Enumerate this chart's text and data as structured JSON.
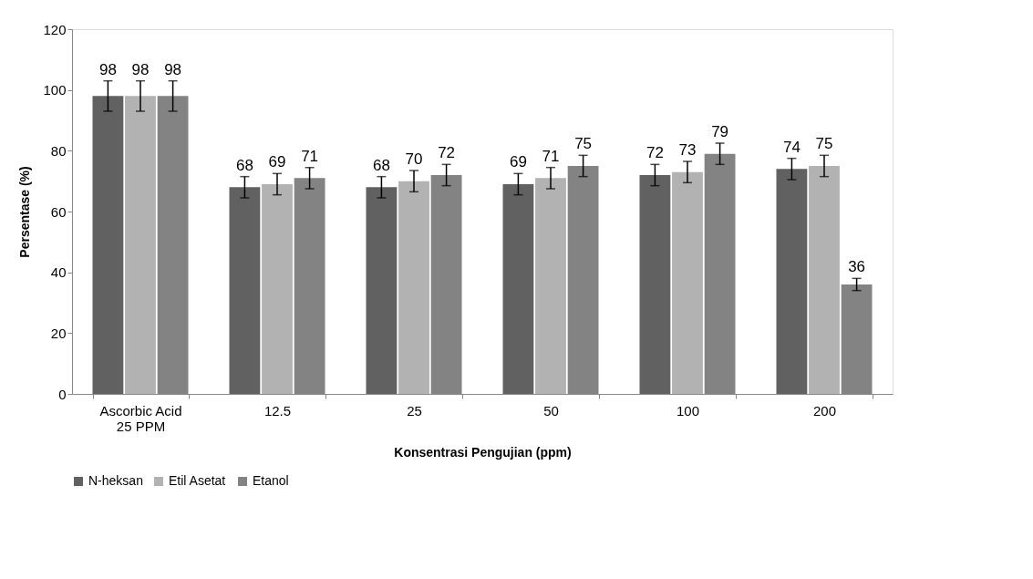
{
  "chart_data": {
    "type": "bar",
    "xlabel": "Konsentrasi Pengujian (ppm)",
    "ylabel": "Persentase (%)",
    "categories": [
      "Ascorbic Acid\n25 PPM",
      "12.5",
      "25",
      "50",
      "100",
      "200"
    ],
    "series": [
      {
        "name": "N-heksan",
        "color": "#616161",
        "values": [
          98,
          68,
          68,
          69,
          72,
          74
        ],
        "errors": [
          5,
          3.5,
          3.5,
          3.5,
          3.5,
          3.5
        ]
      },
      {
        "name": "Etil Asetat",
        "color": "#b2b2b2",
        "values": [
          98,
          69,
          70,
          71,
          73,
          75
        ],
        "errors": [
          5,
          3.5,
          3.5,
          3.5,
          3.5,
          3.5
        ]
      },
      {
        "name": "Etanol",
        "color": "#838383",
        "values": [
          98,
          71,
          72,
          75,
          79,
          36
        ],
        "errors": [
          5,
          3.5,
          3.5,
          3.5,
          3.5,
          2
        ]
      }
    ],
    "ylim": [
      0,
      120
    ],
    "yticks": [
      0,
      20,
      40,
      60,
      80,
      100,
      120
    ],
    "grid": false,
    "legend": "bottom",
    "data_labels": true
  }
}
